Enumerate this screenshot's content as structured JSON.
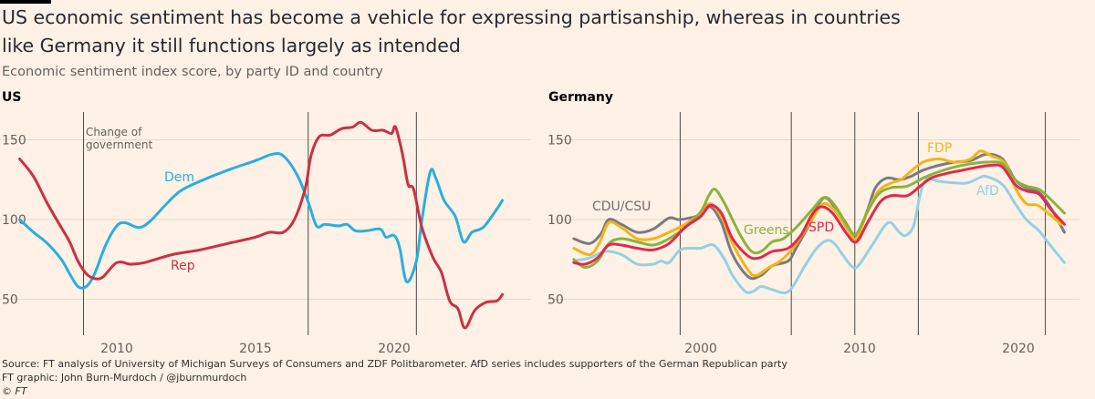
{
  "title": "US economic sentiment has become a vehicle for expressing partisanship, whereas in countries like Germany it still functions largely as intended",
  "subtitle": "Economic sentiment index score, by party ID and country",
  "footer": {
    "source": "Source: FT analysis of University of Michigan Surveys of Consumers and ZDF Politbarometer. AfD series includes supporters of the German Republican party",
    "credit": "FT graphic: John Burn-Murdoch / @jburnmurdoch",
    "copyright": "© FT"
  },
  "chart_data": [
    {
      "type": "line",
      "title": "US",
      "ylim": [
        25,
        165
      ],
      "yticks": [
        50,
        100,
        150
      ],
      "xticks": [
        2010,
        2015,
        2020
      ],
      "xlim": [
        2006.5,
        2024
      ],
      "grid": true,
      "events": [
        2008.8,
        2016.9,
        2020.8
      ],
      "annotation": "Change of government",
      "series": [
        {
          "name": "Dem",
          "color": "#2aaee0",
          "x": [
            2006.5,
            2007,
            2007.5,
            2008,
            2008.3,
            2008.6,
            2008.9,
            2009.2,
            2009.6,
            2010,
            2010.3,
            2010.8,
            2011.2,
            2011.8,
            2012.3,
            2013,
            2014,
            2015,
            2015.6,
            2016,
            2016.5,
            2016.9,
            2017.2,
            2017.5,
            2018,
            2018.3,
            2018.6,
            2019,
            2019.5,
            2019.7,
            2020,
            2020.2,
            2020.45,
            2020.8,
            2021,
            2021.3,
            2021.5,
            2021.8,
            2022.2,
            2022.5,
            2022.8,
            2023.2,
            2023.6,
            2023.9
          ],
          "y": [
            100,
            92,
            85,
            75,
            66,
            58,
            58,
            66,
            84,
            96,
            98,
            95,
            99,
            110,
            118,
            124,
            131,
            137,
            141,
            140,
            128,
            111,
            96,
            97,
            96,
            97,
            93,
            93,
            94,
            89,
            90,
            82,
            61,
            74,
            100,
            130,
            126,
            112,
            102,
            86,
            92,
            95,
            104,
            112
          ]
        },
        {
          "name": "Rep",
          "color": "#cc2f45",
          "x": [
            2006.5,
            2007,
            2007.5,
            2008,
            2008.3,
            2008.6,
            2008.9,
            2009.2,
            2009.5,
            2010,
            2010.5,
            2011,
            2012,
            2013,
            2014,
            2015,
            2015.5,
            2016,
            2016.4,
            2016.8,
            2017,
            2017.3,
            2017.7,
            2018.1,
            2018.5,
            2018.8,
            2019.2,
            2019.6,
            2019.9,
            2020.05,
            2020.3,
            2020.5,
            2020.7,
            2021,
            2021.4,
            2021.7,
            2022,
            2022.3,
            2022.55,
            2022.9,
            2023.3,
            2023.7,
            2023.9
          ],
          "y": [
            138,
            127,
            110,
            95,
            86,
            74,
            66,
            63,
            64,
            73,
            72,
            73,
            78,
            81,
            85,
            89,
            92,
            92,
            100,
            120,
            140,
            152,
            153,
            157,
            158,
            161,
            156,
            156,
            154,
            158,
            141,
            122,
            119,
            95,
            76,
            67,
            49,
            44,
            32,
            43,
            48,
            49,
            53
          ]
        }
      ]
    },
    {
      "type": "line",
      "title": "Germany",
      "ylim": [
        25,
        165
      ],
      "yticks": [
        50,
        100,
        150
      ],
      "xticks": [
        2000,
        2010,
        2020
      ],
      "xlim": [
        1992,
        2023
      ],
      "grid": true,
      "events": [
        1998.7,
        2005.7,
        2009.7,
        2013.7,
        2021.7
      ],
      "series": [
        {
          "name": "AfD",
          "color": "#93d1e6",
          "x": [
            1992,
            1993,
            1994,
            1995,
            1996,
            1997,
            1997.5,
            1998,
            1998.7,
            1999.5,
            2000,
            2000.8,
            2001.5,
            2002,
            2002.8,
            2003.3,
            2003.8,
            2004.5,
            2005.3,
            2005.8,
            2006.5,
            2007.3,
            2008,
            2008.5,
            2009,
            2009.6,
            2010,
            2010.8,
            2011.8,
            2012.5,
            2012.9,
            2013.4,
            2013.8,
            2014.2,
            2015,
            2016,
            2016.8,
            2017.5,
            2018,
            2019,
            2019.8,
            2020.5,
            2021.3,
            2022,
            2022.9
          ],
          "y": [
            74,
            76,
            80,
            78,
            72,
            72,
            74,
            73,
            81,
            82,
            82,
            84,
            75,
            65,
            55,
            55,
            58,
            56,
            54,
            58,
            70,
            82,
            87,
            84,
            77,
            70,
            72,
            84,
            98,
            92,
            90,
            96,
            115,
            125,
            124,
            123,
            123,
            126,
            127,
            122,
            110,
            100,
            93,
            84,
            73
          ]
        },
        {
          "name": "CDU/CSU",
          "color": "#7b7a80",
          "x": [
            1992,
            1993,
            1993.7,
            1994.2,
            1995,
            1996,
            1997,
            1998,
            1998.7,
            2000,
            2000.6,
            2001.3,
            2002,
            2003,
            2003.8,
            2004.5,
            2005.5,
            2006,
            2007,
            2007.5,
            2008,
            2009,
            2009.8,
            2010.5,
            2011,
            2011.7,
            2012.5,
            2013.2,
            2014,
            2015,
            2016,
            2017,
            2018,
            2019,
            2019.8,
            2020.5,
            2021.3,
            2022,
            2022.9
          ],
          "y": [
            88,
            85,
            91,
            100,
            97,
            92,
            94,
            101,
            100,
            103,
            108,
            98,
            78,
            64,
            65,
            71,
            74,
            82,
            100,
            111,
            113,
            100,
            90,
            106,
            120,
            126,
            125,
            127,
            131,
            134,
            136,
            137,
            141,
            138,
            125,
            120,
            117,
            108,
            92
          ]
        },
        {
          "name": "FDP",
          "color": "#f2b517",
          "x": [
            1992,
            1993,
            1993.6,
            1994.2,
            1995,
            1996,
            1997,
            1998,
            1999,
            2000,
            2000.6,
            2001.3,
            2002,
            2003,
            2003.5,
            2004.3,
            2005,
            2005.8,
            2007,
            2007.7,
            2008.5,
            2009.3,
            2009.8,
            2010.5,
            2011.2,
            2012,
            2012.6,
            2013.2,
            2014,
            2015,
            2016,
            2017,
            2017.6,
            2018.3,
            2019.2,
            2019.8,
            2020.5,
            2021.2,
            2022,
            2022.7
          ],
          "y": [
            82,
            78,
            85,
            98,
            95,
            88,
            88,
            92,
            97,
            104,
            110,
            102,
            85,
            68,
            65,
            70,
            74,
            82,
            100,
            110,
            105,
            93,
            88,
            105,
            118,
            123,
            125,
            130,
            136,
            138,
            136,
            138,
            143,
            140,
            135,
            120,
            110,
            109,
            103,
            97
          ]
        },
        {
          "name": "Greens",
          "color": "#8cb23c",
          "x": [
            1992,
            1992.7,
            1993.5,
            1994.2,
            1995,
            1996,
            1997,
            1998,
            1999,
            2000,
            2000.5,
            2000.9,
            2001.5,
            2002.5,
            2003.2,
            2003.8,
            2004.5,
            2005.2,
            2006,
            2007,
            2007.8,
            2008.5,
            2009.3,
            2009.8,
            2010.5,
            2011.2,
            2012,
            2013,
            2014,
            2015,
            2016,
            2017,
            2018,
            2019,
            2019.8,
            2020.5,
            2021.3,
            2022,
            2022.9
          ],
          "y": [
            75,
            70,
            74,
            85,
            88,
            86,
            84,
            88,
            95,
            105,
            115,
            119,
            110,
            90,
            80,
            80,
            86,
            88,
            95,
            106,
            114,
            108,
            95,
            91,
            105,
            116,
            120,
            121,
            126,
            130,
            133,
            135,
            136,
            135,
            125,
            121,
            119,
            113,
            104
          ]
        },
        {
          "name": "SPD",
          "color": "#e2294b",
          "x": [
            1992,
            1992.7,
            1993.5,
            1994.2,
            1995,
            1996,
            1997,
            1998,
            1999,
            2000,
            2000.6,
            2001.3,
            2002,
            2003,
            2003.7,
            2004.5,
            2005.5,
            2006.3,
            2007,
            2007.6,
            2008.3,
            2009.2,
            2009.8,
            2010.5,
            2011.3,
            2012,
            2013,
            2013.7,
            2014.5,
            2015.5,
            2016.5,
            2017.5,
            2018.3,
            2019,
            2019.8,
            2020.5,
            2021.3,
            2022,
            2022.9
          ],
          "y": [
            73,
            72,
            76,
            84,
            84,
            82,
            81,
            85,
            95,
            102,
            109,
            104,
            88,
            77,
            76,
            80,
            82,
            90,
            103,
            108,
            104,
            91,
            86,
            98,
            111,
            115,
            115,
            120,
            126,
            129,
            131,
            133,
            134,
            133,
            122,
            118,
            116,
            107,
            97
          ]
        }
      ]
    }
  ]
}
